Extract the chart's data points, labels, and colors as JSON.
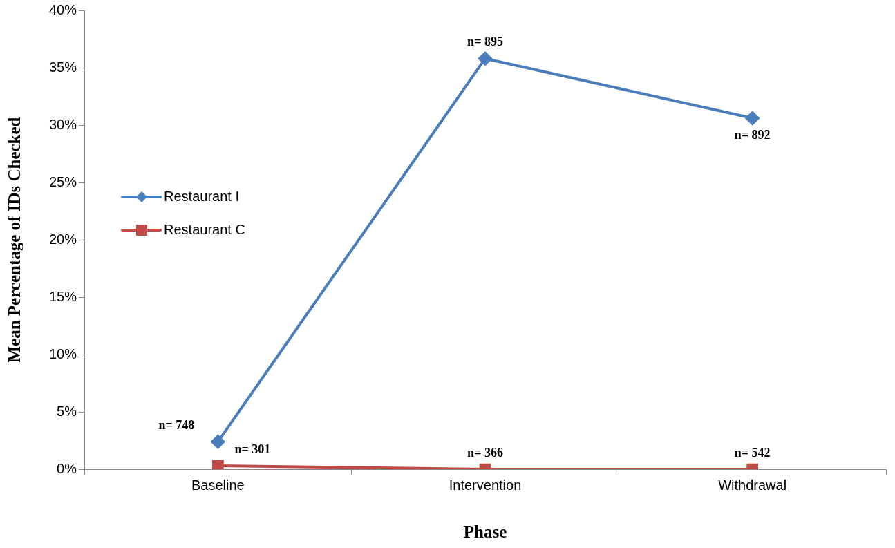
{
  "chart_data": {
    "type": "line",
    "xlabel": "Phase",
    "ylabel": "Mean Percentage of IDs Checked",
    "categories": [
      "Baseline",
      "Intervention",
      "Withdrawal"
    ],
    "series": [
      {
        "name": "Restaurant I",
        "color": "#4a7ebb",
        "values": [
          2.4,
          35.8,
          30.6
        ],
        "marker": "diamond"
      },
      {
        "name": "Restaurant C",
        "color": "#be4b48",
        "values": [
          0.3,
          0,
          0
        ],
        "marker": "square"
      }
    ],
    "ylim": [
      0,
      40
    ],
    "yticks": [
      {
        "value": 0,
        "label": "0%"
      },
      {
        "value": 5,
        "label": "5%"
      },
      {
        "value": 10,
        "label": "10%"
      },
      {
        "value": 15,
        "label": "15%"
      },
      {
        "value": 20,
        "label": "20%"
      },
      {
        "value": 25,
        "label": "25%"
      },
      {
        "value": 30,
        "label": "30%"
      },
      {
        "value": 35,
        "label": "35%"
      },
      {
        "value": 40,
        "label": "40%"
      }
    ],
    "grid": false,
    "legend": "left",
    "line_style": "solid",
    "annotations": [
      {
        "text": "n= 748",
        "x": "Baseline",
        "y": 2.4
      },
      {
        "text": "n= 301",
        "x": "Baseline",
        "y": 0.3
      },
      {
        "text": "n= 895",
        "x": "Intervention",
        "y": 35.8
      },
      {
        "text": "n= 366",
        "x": "Intervention",
        "y": 0
      },
      {
        "text": "n= 892",
        "x": "Withdrawal",
        "y": 30.6
      },
      {
        "text": "n= 542",
        "x": "Withdrawal",
        "y": 0
      }
    ]
  }
}
